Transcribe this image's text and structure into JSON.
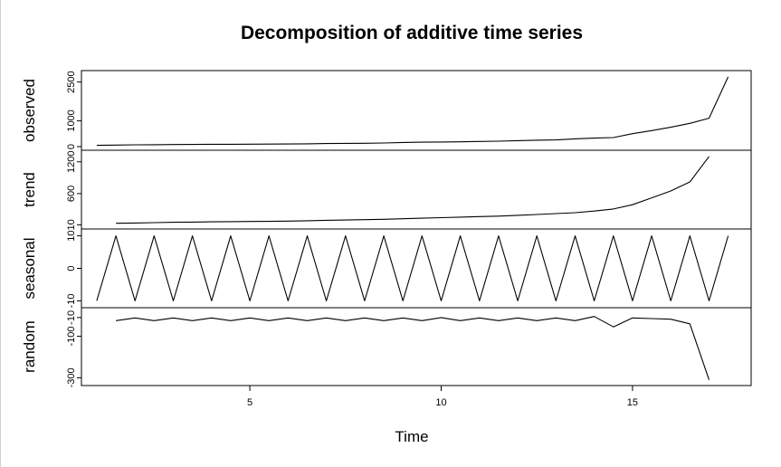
{
  "chart_data": {
    "type": "line",
    "title": "Decomposition of additive time series",
    "xlabel": "Time",
    "xlim": [
      0.6,
      18.1
    ],
    "x_ticks": [
      5,
      10,
      15
    ],
    "x_tick_labels": [
      "5",
      "10",
      "15"
    ],
    "panels": [
      {
        "name": "observed",
        "ylabel": "observed",
        "ylim": [
          0,
          2800
        ],
        "y_ticks": [
          0,
          1000,
          2500
        ],
        "y_tick_labels": [
          "0",
          "1000",
          "2500"
        ],
        "x": [
          1,
          1.5,
          2,
          2.5,
          3,
          3.5,
          4,
          4.5,
          5,
          5.5,
          6,
          6.5,
          7,
          7.5,
          8,
          8.5,
          9,
          9.5,
          10,
          10.5,
          11,
          11.5,
          12,
          12.5,
          13,
          13.5,
          14,
          14.5,
          15,
          15.5,
          16,
          16.5,
          17,
          17.5
        ],
        "values": [
          50,
          60,
          70,
          75,
          80,
          85,
          90,
          92,
          95,
          97,
          100,
          110,
          120,
          125,
          130,
          140,
          160,
          170,
          180,
          185,
          200,
          210,
          230,
          250,
          260,
          300,
          330,
          350,
          500,
          620,
          750,
          900,
          1100,
          2700
        ]
      },
      {
        "name": "trend",
        "ylabel": "trend",
        "ylim": [
          0,
          1350
        ],
        "y_ticks": [
          10,
          600,
          1200
        ],
        "y_tick_labels": [
          "10",
          "600",
          "1200"
        ],
        "x": [
          1.5,
          2,
          2.5,
          3,
          3.5,
          4,
          4.5,
          5,
          5.5,
          6,
          6.5,
          7,
          7.5,
          8,
          8.5,
          9,
          9.5,
          10,
          10.5,
          11,
          11.5,
          12,
          12.5,
          13,
          13.5,
          14,
          14.5,
          15,
          15.5,
          16,
          16.5,
          17
        ],
        "values": [
          40,
          45,
          52,
          58,
          62,
          67,
          70,
          73,
          76,
          80,
          88,
          95,
          101,
          108,
          115,
          125,
          135,
          145,
          155,
          165,
          175,
          190,
          205,
          222,
          240,
          270,
          310,
          390,
          520,
          650,
          820,
          1300
        ]
      },
      {
        "name": "seasonal",
        "ylabel": "seasonal",
        "ylim": [
          -11,
          11
        ],
        "y_ticks": [
          -10,
          0,
          10
        ],
        "y_tick_labels": [
          "-10",
          "0",
          "10"
        ],
        "x": [
          1,
          1.5,
          2,
          2.5,
          3,
          3.5,
          4,
          4.5,
          5,
          5.5,
          6,
          6.5,
          7,
          7.5,
          8,
          8.5,
          9,
          9.5,
          10,
          10.5,
          11,
          11.5,
          12,
          12.5,
          13,
          13.5,
          14,
          14.5,
          15,
          15.5,
          16,
          16.5,
          17,
          17.5
        ],
        "values": [
          -10,
          10,
          -10,
          10,
          -10,
          10,
          -10,
          10,
          -10,
          10,
          -10,
          10,
          -10,
          10,
          -10,
          10,
          -10,
          10,
          -10,
          10,
          -10,
          10,
          -10,
          10,
          -10,
          10,
          -10,
          10,
          -10,
          10,
          -10,
          10,
          -10,
          10
        ]
      },
      {
        "name": "random",
        "ylabel": "random",
        "ylim": [
          -320,
          20
        ],
        "y_ticks": [
          -300,
          -100,
          -10
        ],
        "y_tick_labels": [
          "-300",
          "-100",
          "-10"
        ],
        "x": [
          1.5,
          2,
          2.5,
          3,
          3.5,
          4,
          4.5,
          5,
          5.5,
          6,
          6.5,
          7,
          7.5,
          8,
          8.5,
          9,
          9.5,
          10,
          10.5,
          11,
          11.5,
          12,
          12.5,
          13,
          13.5,
          14,
          14.5,
          15,
          15.5,
          16,
          16.5,
          17
        ],
        "values": [
          -25,
          -12,
          -25,
          -12,
          -25,
          -12,
          -25,
          -12,
          -25,
          -12,
          -25,
          -12,
          -25,
          -12,
          -25,
          -12,
          -25,
          -10,
          -25,
          -12,
          -25,
          -12,
          -25,
          -12,
          -25,
          -5,
          -55,
          -12,
          -15,
          -18,
          -40,
          -310
        ]
      }
    ]
  }
}
